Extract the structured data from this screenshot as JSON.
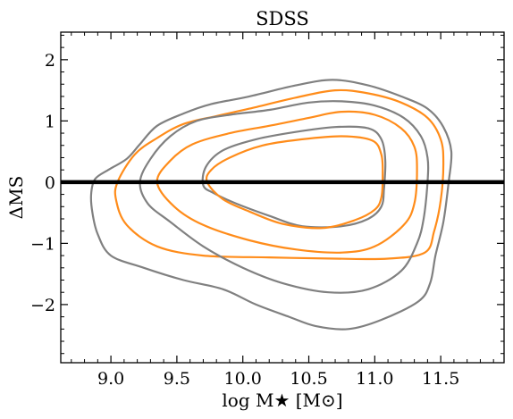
{
  "chart_data": {
    "type": "contour",
    "title": "SDSS",
    "xlabel": "log M★ [M⊙]",
    "ylabel": "ΔMS",
    "xlim": [
      8.62,
      11.98
    ],
    "ylim": [
      -2.95,
      2.45
    ],
    "xticks": [
      9.0,
      9.5,
      10.0,
      10.5,
      11.0,
      11.5
    ],
    "xtick_labels": [
      "9.0",
      "9.5",
      "10.0",
      "10.5",
      "11.0",
      "11.5"
    ],
    "yticks": [
      -2,
      -1,
      0,
      1,
      2
    ],
    "ytick_labels": [
      "−2",
      "−1",
      "0",
      "1",
      "2"
    ],
    "grid": false,
    "legend": "none",
    "reference_line": {
      "y": 0,
      "color": "#000000"
    },
    "colors": {
      "gray": "#808080",
      "orange": "#ff8c1a"
    },
    "contours": [
      {
        "color": "gray",
        "level": "outer",
        "points": [
          [
            8.85,
            -0.2
          ],
          [
            8.88,
            0.05
          ],
          [
            8.98,
            0.2
          ],
          [
            9.12,
            0.38
          ],
          [
            9.22,
            0.62
          ],
          [
            9.35,
            0.92
          ],
          [
            9.55,
            1.12
          ],
          [
            9.75,
            1.27
          ],
          [
            10.05,
            1.4
          ],
          [
            10.4,
            1.58
          ],
          [
            10.68,
            1.67
          ],
          [
            10.95,
            1.58
          ],
          [
            11.2,
            1.4
          ],
          [
            11.4,
            1.2
          ],
          [
            11.52,
            0.9
          ],
          [
            11.58,
            0.5
          ],
          [
            11.56,
            0.0
          ],
          [
            11.52,
            -0.65
          ],
          [
            11.46,
            -1.2
          ],
          [
            11.42,
            -1.65
          ],
          [
            11.33,
            -1.95
          ],
          [
            11.05,
            -2.25
          ],
          [
            10.8,
            -2.4
          ],
          [
            10.55,
            -2.35
          ],
          [
            10.35,
            -2.2
          ],
          [
            10.1,
            -2.0
          ],
          [
            9.85,
            -1.75
          ],
          [
            9.55,
            -1.6
          ],
          [
            9.25,
            -1.4
          ],
          [
            9.0,
            -1.2
          ],
          [
            8.9,
            -0.85
          ],
          [
            8.86,
            -0.5
          ]
        ]
      },
      {
        "color": "orange",
        "level": "outer",
        "points": [
          [
            9.05,
            0.0
          ],
          [
            9.18,
            0.45
          ],
          [
            9.35,
            0.72
          ],
          [
            9.55,
            0.95
          ],
          [
            9.8,
            1.08
          ],
          [
            10.05,
            1.2
          ],
          [
            10.4,
            1.38
          ],
          [
            10.7,
            1.5
          ],
          [
            10.95,
            1.45
          ],
          [
            11.2,
            1.3
          ],
          [
            11.4,
            1.05
          ],
          [
            11.5,
            0.7
          ],
          [
            11.52,
            0.3
          ],
          [
            11.5,
            -0.3
          ],
          [
            11.45,
            -0.8
          ],
          [
            11.38,
            -1.15
          ],
          [
            11.1,
            -1.25
          ],
          [
            10.7,
            -1.25
          ],
          [
            10.2,
            -1.23
          ],
          [
            9.7,
            -1.2
          ],
          [
            9.35,
            -1.05
          ],
          [
            9.12,
            -0.7
          ],
          [
            9.04,
            -0.3
          ]
        ]
      },
      {
        "color": "gray",
        "level": "middle",
        "points": [
          [
            9.22,
            0.0
          ],
          [
            9.3,
            0.38
          ],
          [
            9.45,
            0.75
          ],
          [
            9.65,
            1.0
          ],
          [
            9.9,
            1.1
          ],
          [
            10.2,
            1.18
          ],
          [
            10.5,
            1.3
          ],
          [
            10.75,
            1.32
          ],
          [
            11.0,
            1.25
          ],
          [
            11.22,
            1.05
          ],
          [
            11.35,
            0.75
          ],
          [
            11.4,
            0.4
          ],
          [
            11.4,
            0.0
          ],
          [
            11.37,
            -0.6
          ],
          [
            11.32,
            -1.0
          ],
          [
            11.2,
            -1.45
          ],
          [
            10.95,
            -1.75
          ],
          [
            10.65,
            -1.8
          ],
          [
            10.3,
            -1.65
          ],
          [
            10.0,
            -1.4
          ],
          [
            9.7,
            -1.05
          ],
          [
            9.45,
            -0.65
          ],
          [
            9.28,
            -0.35
          ]
        ]
      },
      {
        "color": "orange",
        "level": "middle",
        "points": [
          [
            9.35,
            0.0
          ],
          [
            9.45,
            0.35
          ],
          [
            9.62,
            0.62
          ],
          [
            9.9,
            0.8
          ],
          [
            10.2,
            0.92
          ],
          [
            10.5,
            1.05
          ],
          [
            10.75,
            1.15
          ],
          [
            11.0,
            1.1
          ],
          [
            11.2,
            0.88
          ],
          [
            11.3,
            0.58
          ],
          [
            11.32,
            0.2
          ],
          [
            11.3,
            -0.35
          ],
          [
            11.22,
            -0.7
          ],
          [
            11.0,
            -1.05
          ],
          [
            10.75,
            -1.15
          ],
          [
            10.4,
            -1.1
          ],
          [
            10.05,
            -0.95
          ],
          [
            9.7,
            -0.7
          ],
          [
            9.48,
            -0.4
          ]
        ]
      },
      {
        "color": "gray",
        "level": "inner",
        "points": [
          [
            9.7,
            -0.05
          ],
          [
            9.72,
            0.25
          ],
          [
            9.85,
            0.52
          ],
          [
            10.1,
            0.7
          ],
          [
            10.4,
            0.82
          ],
          [
            10.7,
            0.9
          ],
          [
            10.95,
            0.88
          ],
          [
            11.05,
            0.7
          ],
          [
            11.08,
            0.35
          ],
          [
            11.07,
            -0.1
          ],
          [
            11.05,
            -0.4
          ],
          [
            10.95,
            -0.6
          ],
          [
            10.75,
            -0.72
          ],
          [
            10.45,
            -0.72
          ],
          [
            10.2,
            -0.55
          ],
          [
            9.95,
            -0.35
          ],
          [
            9.78,
            -0.18
          ]
        ]
      },
      {
        "color": "orange",
        "level": "inner",
        "points": [
          [
            9.73,
            0.0
          ],
          [
            9.76,
            0.2
          ],
          [
            9.9,
            0.4
          ],
          [
            10.15,
            0.6
          ],
          [
            10.45,
            0.7
          ],
          [
            10.75,
            0.75
          ],
          [
            10.98,
            0.68
          ],
          [
            11.05,
            0.45
          ],
          [
            11.06,
            0.1
          ],
          [
            11.05,
            -0.25
          ],
          [
            11.0,
            -0.45
          ],
          [
            10.85,
            -0.62
          ],
          [
            10.6,
            -0.75
          ],
          [
            10.3,
            -0.68
          ],
          [
            10.05,
            -0.48
          ],
          [
            9.85,
            -0.28
          ]
        ]
      }
    ]
  }
}
